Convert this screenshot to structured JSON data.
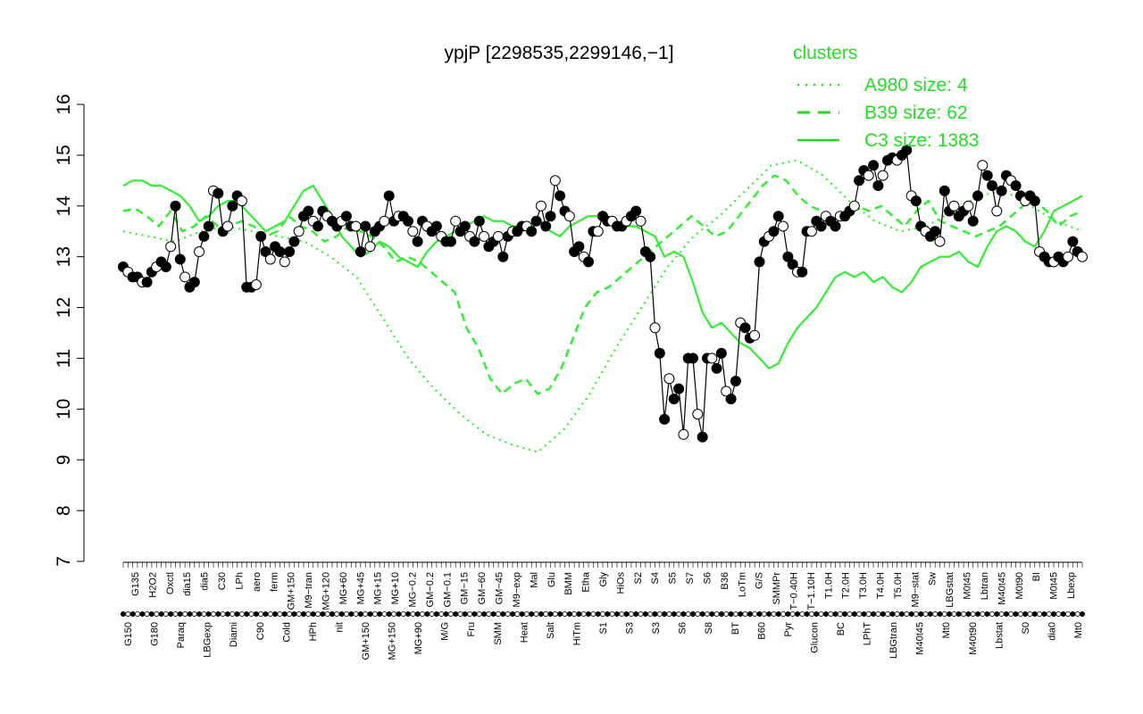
{
  "chart_data": {
    "type": "line",
    "title": "ypjP [2298535,2299146,−1]",
    "xlabel": "",
    "ylabel": "",
    "ylim": [
      7,
      16
    ],
    "yticks": [
      7,
      8,
      9,
      10,
      11,
      12,
      13,
      14,
      15,
      16
    ],
    "grid": false,
    "legend": {
      "title": "clusters",
      "placement": "top-right",
      "color": "#22dd22",
      "entries": [
        {
          "label": "A980 size: 4",
          "style": "dotted"
        },
        {
          "label": "B39 size: 62",
          "style": "dashed"
        },
        {
          "label": "C3 size: 1383",
          "style": "solid"
        }
      ]
    },
    "x_labels_top": [
      "G135",
      "H2O2",
      "Oxctl",
      "dia15",
      "dia5",
      "C30",
      "LPh",
      "aero",
      "ferm",
      "GM+150",
      "M9−tran",
      "MG+120",
      "MG+60",
      "MG+45",
      "MG+15",
      "MG+10",
      "MG−0.2",
      "GM−0.2",
      "GM−0.1",
      "GM−15",
      "GM−60",
      "GM−45",
      "M9−exp",
      "Mal",
      "Glu",
      "BMM",
      "Etha",
      "Gly",
      "HiOs",
      "S2",
      "S4",
      "S5",
      "S7",
      "S6",
      "B36",
      "LoTm",
      "G/S",
      "SMMPr",
      "T−0.40H",
      "T−1.10H",
      "T1.0H",
      "T2.0H",
      "T3.0H",
      "T4.0H",
      "T5.0H",
      "M9−stat",
      "Sw",
      "LBGstat",
      "M0t45",
      "Lbtran",
      "M40t45",
      "M0t90",
      "BI",
      "M0t45",
      "Lbexp"
    ],
    "x_labels_bottom": [
      "G150",
      "G180",
      "Paraq",
      "LBGexp",
      "Diami",
      "C90",
      "Cold",
      "HPh",
      "nit",
      "GM+150",
      "MG+150",
      "MG+90",
      "M/G",
      "Fru",
      "SMM",
      "Heat",
      "Salt",
      "HiTm",
      "S1",
      "S3",
      "S3",
      "S6",
      "S8",
      "BT",
      "B60",
      "Pyr",
      "Glucon",
      "BC",
      "LPhT",
      "LBGtran",
      "M40t45",
      "Mt0",
      "M40t90",
      "Lbstat",
      "S0",
      "dia0",
      "Mt0"
    ],
    "series": [
      {
        "values": [
          12.8,
          12.7,
          12.6,
          12.6,
          12.5,
          12.5,
          12.7,
          12.8,
          12.9,
          12.8,
          13.2,
          14.0,
          12.95,
          12.6,
          12.4,
          12.5,
          13.1,
          13.4,
          13.6,
          14.3,
          14.25,
          13.5,
          13.6,
          14.0,
          14.2,
          14.1,
          12.4,
          12.4,
          12.45,
          13.4,
          13.1,
          12.95,
          13.2,
          13.1,
          12.9,
          13.1,
          13.3,
          13.5,
          13.8,
          13.9,
          13.7,
          13.6,
          13.9,
          13.8,
          13.7,
          13.6,
          13.7,
          13.8,
          13.6,
          13.6,
          13.1,
          13.6,
          13.2,
          13.5,
          13.6,
          13.7,
          14.2,
          13.7,
          13.8,
          13.8,
          13.7,
          13.5,
          13.3,
          13.7,
          13.6,
          13.5,
          13.6,
          13.4,
          13.3,
          13.3,
          13.7,
          13.5,
          13.6,
          13.4,
          13.3,
          13.7,
          13.4,
          13.2,
          13.3,
          13.4,
          13.0,
          13.4,
          13.5,
          13.5,
          13.6,
          13.6,
          13.5,
          13.7,
          14.0,
          13.6,
          13.8,
          14.5,
          14.2,
          13.9,
          13.8,
          13.1,
          13.2,
          13.0,
          12.9,
          13.5,
          13.5,
          13.8,
          13.7,
          13.7,
          13.6,
          13.6,
          13.7,
          13.8,
          13.9,
          13.7,
          13.1,
          13.0,
          11.6,
          11.1,
          9.8,
          10.6,
          10.2,
          10.4,
          9.5,
          11.0,
          11.0,
          9.9,
          9.45,
          11.0,
          11.0,
          10.8,
          11.1,
          10.35,
          10.2,
          10.55,
          11.7,
          11.6,
          11.4,
          11.45,
          12.9,
          13.3,
          13.4,
          13.5,
          13.8,
          13.6,
          13.0,
          12.85,
          12.7,
          12.7,
          13.5,
          13.5,
          13.7,
          13.6,
          13.8,
          13.7,
          13.6,
          13.8,
          13.8,
          13.9,
          14.0,
          14.5,
          14.7,
          14.6,
          14.8,
          14.4,
          14.6,
          14.9,
          14.95,
          14.9,
          15.0,
          15.1,
          14.2,
          14.1,
          13.6,
          13.5,
          13.4,
          13.5,
          13.3,
          14.3,
          13.9,
          14.0,
          13.8,
          13.9,
          14.0,
          13.7,
          14.2,
          14.8,
          14.6,
          14.4,
          13.9,
          14.3,
          14.6,
          14.5,
          14.4,
          14.2,
          14.1,
          14.2,
          14.1,
          13.1,
          13.0,
          12.9,
          12.9,
          13.0,
          12.9,
          13.0,
          13.3,
          13.1,
          13.0
        ]
      },
      {
        "name": "",
        "values": [
          14.4,
          14.5,
          14.5,
          14.4,
          14.4,
          14.3,
          14.2,
          14.0,
          13.7,
          13.8,
          14.0,
          14.1,
          14.1,
          13.9,
          13.7,
          13.5,
          13.6,
          13.7,
          14.0,
          14.3,
          14.4,
          14.1,
          13.8,
          13.4,
          13.2,
          13.0,
          13.1,
          13.3,
          13.2,
          13.0,
          12.9,
          12.8,
          13.1,
          13.3,
          13.4,
          13.5,
          13.6,
          13.7,
          13.8,
          13.7,
          13.7,
          13.6,
          13.6,
          13.6,
          13.7,
          13.5,
          13.4,
          13.6,
          13.7,
          13.8,
          13.8,
          13.7,
          13.7,
          13.6,
          13.6,
          13.5,
          13.4,
          13.0,
          13.1,
          13.0,
          12.5,
          11.9,
          11.6,
          11.7,
          11.5,
          11.3,
          11.2,
          11.0,
          10.8,
          10.9,
          11.3,
          11.6,
          11.8,
          12.0,
          12.3,
          12.6,
          12.7,
          12.6,
          12.7,
          12.5,
          12.6,
          12.4,
          12.3,
          12.5,
          12.8,
          12.9,
          13.0,
          13.0,
          13.1,
          12.9,
          12.8,
          13.2,
          13.5,
          13.6,
          13.5,
          13.3,
          13.2,
          13.5,
          13.9,
          14.0,
          14.1,
          14.2
        ]
      },
      {
        "name": "",
        "values": [
          13.9,
          13.95,
          13.8,
          13.6,
          13.9,
          13.5,
          13.6,
          13.8,
          13.6,
          13.6,
          13.7,
          13.6,
          13.4,
          13.5,
          13.8,
          13.6,
          13.5,
          13.3,
          13.4,
          13.6,
          13.5,
          13.4,
          13.2,
          12.9,
          13.0,
          12.9,
          12.7,
          12.5,
          12.3,
          11.6,
          11.2,
          10.6,
          10.3,
          10.5,
          10.6,
          10.3,
          10.4,
          10.8,
          11.4,
          12.0,
          12.3,
          12.4,
          12.6,
          12.8,
          13.0,
          13.2,
          13.4,
          13.6,
          13.8,
          13.6,
          13.4,
          13.5,
          13.8,
          14.1,
          14.4,
          14.6,
          14.5,
          14.2,
          14.0,
          13.9,
          13.6,
          13.8,
          14.0,
          13.9,
          14.0,
          13.8,
          13.6,
          13.9,
          14.1,
          13.7,
          13.6,
          13.5,
          13.4,
          13.5,
          13.6,
          13.8,
          14.0,
          14.1,
          13.9,
          13.6,
          13.8,
          13.9
        ]
      },
      {
        "name": "",
        "values": [
          13.5,
          13.4,
          13.3,
          13.5,
          13.6,
          13.5,
          13.4,
          13.3,
          13.0,
          12.6,
          11.8,
          11.0,
          10.4,
          9.9,
          9.5,
          9.3,
          9.15,
          9.6,
          10.3,
          11.2,
          12.0,
          12.8,
          13.4,
          13.8,
          14.3,
          14.8,
          14.9,
          14.6,
          14.1,
          13.7,
          13.5,
          13.6,
          13.9,
          14.2,
          14.3,
          14.0,
          13.7,
          13.5
        ]
      }
    ]
  }
}
